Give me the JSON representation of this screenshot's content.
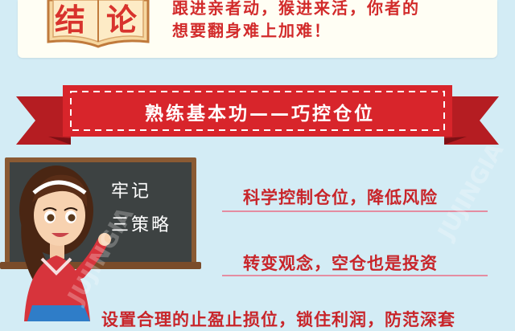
{
  "header": {
    "book_chars": [
      "结",
      "论"
    ],
    "line1": "跟进亲者动，猴进来活，你者的",
    "line2": "想要翻身难上加难！"
  },
  "banner": {
    "title": "熟练基本功——巧控仓位",
    "color": "#d8252b"
  },
  "board": {
    "line1": "牢记",
    "line2": "三策略"
  },
  "points": [
    "科学控制仓位，降低风险",
    "转变观念，空仓也是投资"
  ],
  "bottom_text": "设置合理的止盈止损位，锁住利润，防范深套",
  "watermark": {
    "label": "JUJINGIA"
  }
}
